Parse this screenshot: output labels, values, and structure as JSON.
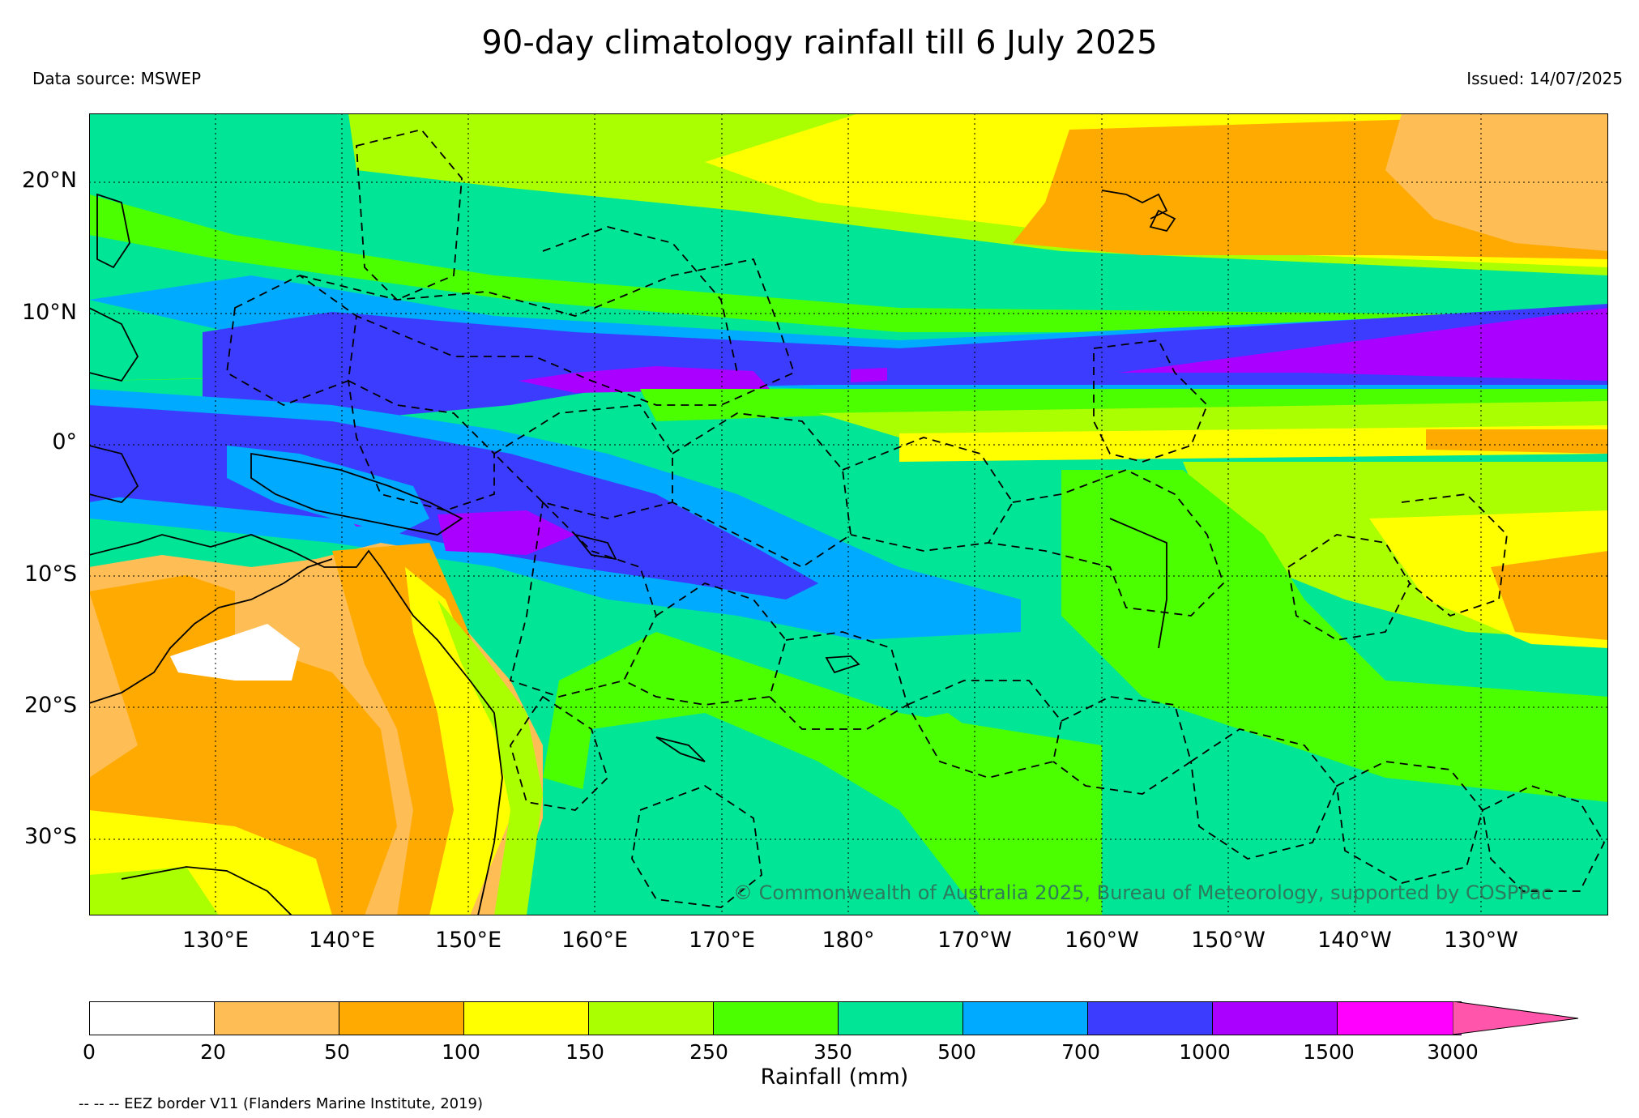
{
  "title": "90-day climatology rainfall till 6 July 2025",
  "data_source": "Data source: MSWEP",
  "issued": "Issued: 14/07/2025",
  "lat_labels": [
    "20°N",
    "10°N",
    "0°",
    "10°S",
    "20°S",
    "30°S"
  ],
  "lon_labels": [
    "130°E",
    "140°E",
    "150°E",
    "160°E",
    "170°E",
    "180°",
    "170°W",
    "160°W",
    "150°W",
    "140°W",
    "130°W"
  ],
  "copyright": "© Commonwealth of Australia 2025, Bureau of Meteorology, supported by COSPPac",
  "colorbar": {
    "title": "Rainfall (mm)",
    "ticks": [
      "0",
      "20",
      "50",
      "100",
      "150",
      "250",
      "350",
      "500",
      "700",
      "1000",
      "1500",
      "3000"
    ],
    "colors": [
      "#ffffff",
      "#ffbe55",
      "#ffaa00",
      "#ffff00",
      "#aaff00",
      "#4cff00",
      "#00e696",
      "#00aaff",
      "#3c3cff",
      "#aa00ff",
      "#ff00ff",
      "#ff55aa"
    ]
  },
  "eez_note": "-- -- -- EEZ border V11 (Flanders Marine Institute, 2019)"
}
